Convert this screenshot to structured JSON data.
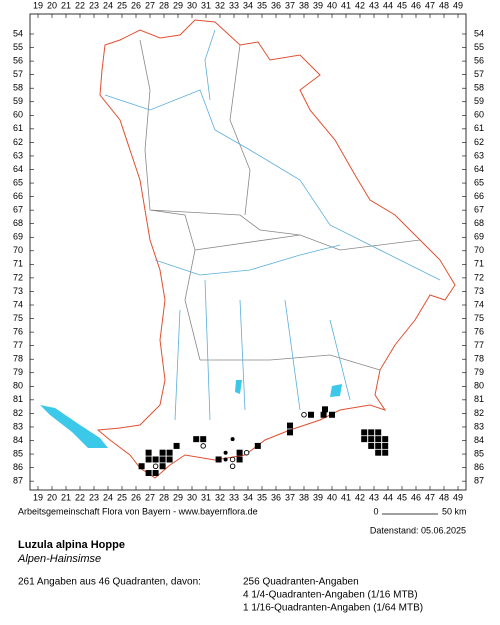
{
  "map": {
    "xticks": [
      19,
      20,
      21,
      22,
      23,
      24,
      25,
      26,
      27,
      28,
      29,
      30,
      31,
      32,
      33,
      34,
      35,
      36,
      37,
      38,
      39,
      40,
      41,
      42,
      43,
      44,
      45,
      46,
      47,
      48,
      49
    ],
    "yticks": [
      54,
      55,
      56,
      57,
      58,
      59,
      60,
      61,
      62,
      63,
      64,
      65,
      66,
      67,
      68,
      69,
      70,
      71,
      72,
      73,
      74,
      75,
      76,
      77,
      78,
      79,
      80,
      81,
      82,
      83,
      84,
      85,
      86,
      87
    ],
    "markers": [
      {
        "x": 39.5,
        "y": 81.7,
        "kind": "square"
      },
      {
        "x": 40,
        "y": 82.1,
        "kind": "square"
      },
      {
        "x": 39.4,
        "y": 82.1,
        "kind": "square"
      },
      {
        "x": 38,
        "y": 82.1,
        "kind": "circle"
      },
      {
        "x": 37,
        "y": 82.9,
        "kind": "square"
      },
      {
        "x": 37,
        "y": 83.4,
        "kind": "square"
      },
      {
        "x": 42.3,
        "y": 83.4,
        "kind": "square"
      },
      {
        "x": 42.8,
        "y": 83.4,
        "kind": "square"
      },
      {
        "x": 43.3,
        "y": 83.4,
        "kind": "square"
      },
      {
        "x": 42.3,
        "y": 83.9,
        "kind": "square"
      },
      {
        "x": 42.8,
        "y": 83.9,
        "kind": "square"
      },
      {
        "x": 43.3,
        "y": 83.9,
        "kind": "square"
      },
      {
        "x": 43.8,
        "y": 83.9,
        "kind": "square"
      },
      {
        "x": 42.8,
        "y": 84.4,
        "kind": "square"
      },
      {
        "x": 43.3,
        "y": 84.4,
        "kind": "square"
      },
      {
        "x": 43.8,
        "y": 84.4,
        "kind": "square"
      },
      {
        "x": 43.3,
        "y": 84.9,
        "kind": "square"
      },
      {
        "x": 43.8,
        "y": 84.9,
        "kind": "square"
      },
      {
        "x": 34.7,
        "y": 84.4,
        "kind": "square"
      },
      {
        "x": 32.9,
        "y": 83.9,
        "kind": "dot"
      },
      {
        "x": 30.3,
        "y": 83.9,
        "kind": "square"
      },
      {
        "x": 30.8,
        "y": 83.9,
        "kind": "square"
      },
      {
        "x": 28.9,
        "y": 84.4,
        "kind": "square"
      },
      {
        "x": 30.8,
        "y": 84.4,
        "kind": "circle"
      },
      {
        "x": 27.9,
        "y": 84.9,
        "kind": "square"
      },
      {
        "x": 28.4,
        "y": 84.9,
        "kind": "square"
      },
      {
        "x": 26.9,
        "y": 84.9,
        "kind": "square"
      },
      {
        "x": 26.9,
        "y": 85.4,
        "kind": "square"
      },
      {
        "x": 27.4,
        "y": 85.4,
        "kind": "square"
      },
      {
        "x": 27.9,
        "y": 85.4,
        "kind": "square"
      },
      {
        "x": 28.4,
        "y": 85.4,
        "kind": "square"
      },
      {
        "x": 26.4,
        "y": 85.9,
        "kind": "square"
      },
      {
        "x": 27.4,
        "y": 85.9,
        "kind": "circle"
      },
      {
        "x": 27.9,
        "y": 85.9,
        "kind": "square"
      },
      {
        "x": 26.9,
        "y": 86.4,
        "kind": "square"
      },
      {
        "x": 27.4,
        "y": 86.4,
        "kind": "square"
      },
      {
        "x": 31.9,
        "y": 85.4,
        "kind": "square"
      },
      {
        "x": 32.4,
        "y": 85.4,
        "kind": "dot"
      },
      {
        "x": 32.9,
        "y": 85.4,
        "kind": "circle"
      },
      {
        "x": 33.4,
        "y": 85.4,
        "kind": "square"
      },
      {
        "x": 33.9,
        "y": 84.9,
        "kind": "circle"
      },
      {
        "x": 33.4,
        "y": 84.9,
        "kind": "square"
      },
      {
        "x": 32.4,
        "y": 84.9,
        "kind": "dot"
      },
      {
        "x": 32.9,
        "y": 85.9,
        "kind": "circle"
      },
      {
        "x": 38.5,
        "y": 82.1,
        "kind": "square"
      }
    ]
  },
  "footer": {
    "credit": "Arbeitsgemeinschaft Flora von Bayern - www.bayernflora.de",
    "scale_start": "0",
    "scale_end": "50 km",
    "date": "Datenstand: 05.06.2025",
    "species": "Luzula alpina Hoppe",
    "common_name": "Alpen-Hainsimse",
    "summary": "261 Angaben aus 46 Quadranten, davon:",
    "detail_1": "256 Quadranten-Angaben",
    "detail_2": "4 1/4-Quadranten-Angaben (1/16 MTB)",
    "detail_3": "1 1/16-Quadranten-Angaben (1/64 MTB)"
  }
}
